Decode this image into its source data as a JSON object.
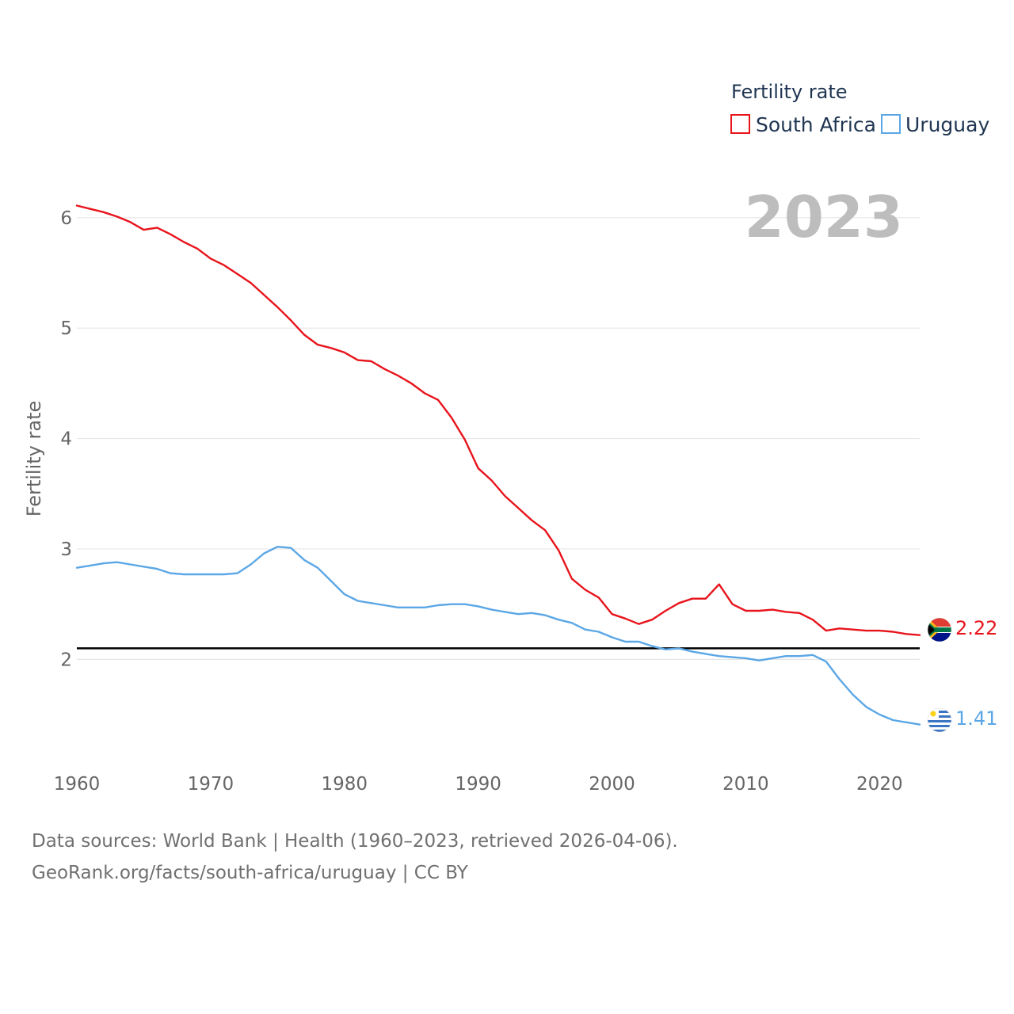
{
  "chart_data": {
    "type": "line",
    "title": "",
    "watermark_year": "2023",
    "legend_title": "Fertility rate",
    "ylabel": "Fertility rate",
    "xlabel": "",
    "xlim": [
      1960,
      2023
    ],
    "ylim": [
      1.12,
      6.3
    ],
    "x_ticks": [
      1960,
      1970,
      1980,
      1990,
      2000,
      2010,
      2020
    ],
    "y_ticks": [
      2,
      3,
      4,
      5,
      6
    ],
    "reference_line": 2.1,
    "grid": true,
    "legend_position": "top-right",
    "x": [
      1960,
      1961,
      1962,
      1963,
      1964,
      1965,
      1966,
      1967,
      1968,
      1969,
      1970,
      1971,
      1972,
      1973,
      1974,
      1975,
      1976,
      1977,
      1978,
      1979,
      1980,
      1981,
      1982,
      1983,
      1984,
      1985,
      1986,
      1987,
      1988,
      1989,
      1990,
      1991,
      1992,
      1993,
      1994,
      1995,
      1996,
      1997,
      1998,
      1999,
      2000,
      2001,
      2002,
      2003,
      2004,
      2005,
      2006,
      2007,
      2008,
      2009,
      2010,
      2011,
      2012,
      2013,
      2014,
      2015,
      2016,
      2017,
      2018,
      2019,
      2020,
      2021,
      2022,
      2023
    ],
    "series": [
      {
        "name": "South Africa",
        "color": "#e8141c",
        "end_label": "2.22",
        "values": [
          6.11,
          6.08,
          6.05,
          6.01,
          5.96,
          5.89,
          5.91,
          5.85,
          5.78,
          5.72,
          5.63,
          5.57,
          5.49,
          5.41,
          5.3,
          5.19,
          5.07,
          4.94,
          4.85,
          4.82,
          4.78,
          4.71,
          4.7,
          4.63,
          4.57,
          4.5,
          4.41,
          4.35,
          4.19,
          3.99,
          3.73,
          3.62,
          3.48,
          3.37,
          3.26,
          3.17,
          2.99,
          2.73,
          2.63,
          2.56,
          2.41,
          2.37,
          2.32,
          2.36,
          2.44,
          2.51,
          2.55,
          2.55,
          2.68,
          2.5,
          2.44,
          2.44,
          2.45,
          2.43,
          2.42,
          2.36,
          2.26,
          2.28,
          2.27,
          2.26,
          2.26,
          2.25,
          2.23,
          2.22
        ]
      },
      {
        "name": "Uruguay",
        "color": "#5ba7e6",
        "end_label": "1.41",
        "values": [
          2.83,
          2.85,
          2.87,
          2.88,
          2.86,
          2.84,
          2.82,
          2.78,
          2.77,
          2.77,
          2.77,
          2.77,
          2.78,
          2.86,
          2.96,
          3.02,
          3.01,
          2.9,
          2.83,
          2.71,
          2.59,
          2.53,
          2.51,
          2.49,
          2.47,
          2.47,
          2.47,
          2.49,
          2.5,
          2.5,
          2.48,
          2.45,
          2.43,
          2.41,
          2.42,
          2.4,
          2.36,
          2.33,
          2.27,
          2.25,
          2.2,
          2.16,
          2.16,
          2.12,
          2.09,
          2.1,
          2.07,
          2.05,
          2.03,
          2.02,
          2.01,
          1.99,
          2.01,
          2.03,
          2.03,
          2.04,
          1.98,
          1.82,
          1.68,
          1.57,
          1.5,
          1.45,
          1.43,
          1.41
        ]
      }
    ]
  },
  "footer": {
    "line1": "Data sources: World Bank | Health (1960–2023, retrieved 2026-04-06).",
    "line2": "GeoRank.org/facts/south-africa/uruguay | CC BY"
  }
}
